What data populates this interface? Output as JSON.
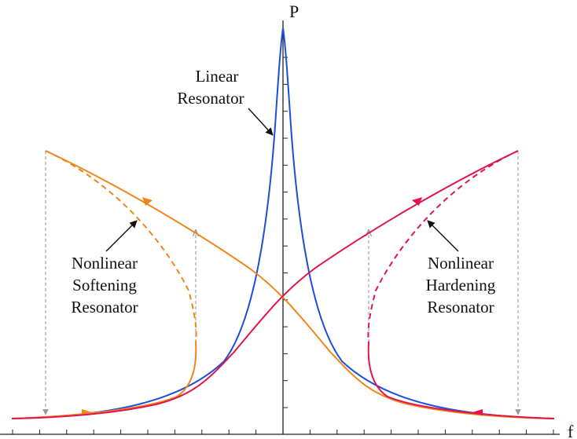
{
  "axes": {
    "x_label": "f",
    "y_label": "P"
  },
  "annotations": {
    "linear": [
      "Linear",
      "Resonator"
    ],
    "softening": [
      "Nonlinear",
      "Softening",
      "Resonator"
    ],
    "hardening": [
      "Nonlinear",
      "Hardening",
      "Resonator"
    ]
  },
  "colors": {
    "linear": "#1f4fd8",
    "softening": "#f0861b",
    "hardening": "#e0164b",
    "axis": "#222222",
    "jump": "#9a9a9a"
  }
}
